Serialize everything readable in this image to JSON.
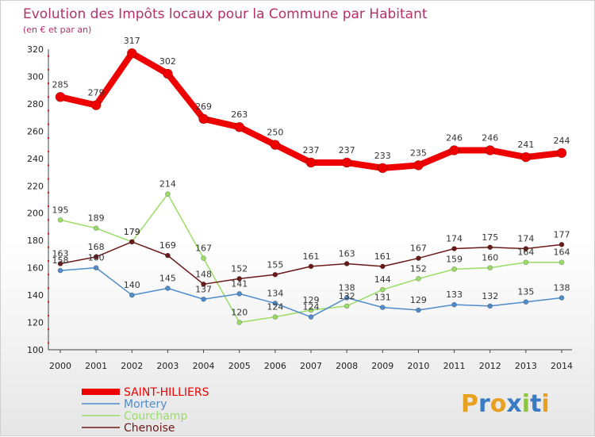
{
  "chart_data": {
    "type": "line",
    "title": "Evolution des Impôts locaux pour la Commune par Habitant",
    "subtitle": "(en € et par an)",
    "xlabel": "",
    "ylabel": "",
    "x": [
      2000,
      2001,
      2002,
      2003,
      2004,
      2005,
      2006,
      2007,
      2008,
      2009,
      2010,
      2011,
      2012,
      2013,
      2014
    ],
    "ylim": [
      100,
      320
    ],
    "yticks": [
      100,
      120,
      140,
      160,
      180,
      200,
      220,
      240,
      260,
      280,
      300,
      320
    ],
    "grid": false,
    "legend_position": "bottom-left",
    "series": [
      {
        "name": "SAINT-HILLIERS",
        "color": "#ee0000",
        "values": [
          285,
          279,
          317,
          302,
          269,
          263,
          250,
          237,
          237,
          233,
          235,
          246,
          246,
          241,
          244
        ]
      },
      {
        "name": "Mortery",
        "color": "#4f8cc9",
        "values": [
          158,
          160,
          140,
          145,
          137,
          141,
          134,
          124,
          138,
          131,
          129,
          133,
          132,
          135,
          138
        ]
      },
      {
        "name": "Courchamp",
        "color": "#99dd66",
        "values": [
          195,
          189,
          179,
          214,
          167,
          120,
          124,
          129,
          132,
          144,
          152,
          159,
          160,
          164,
          164
        ]
      },
      {
        "name": "Chenoise",
        "color": "#6b1a1a",
        "values": [
          163,
          168,
          179,
          169,
          148,
          152,
          155,
          161,
          163,
          161,
          167,
          174,
          175,
          174,
          177
        ]
      }
    ]
  },
  "logo": {
    "text": "Proxiti",
    "letters": [
      "P",
      "r",
      "o",
      "x",
      "i",
      "t",
      "i"
    ],
    "colors": [
      "#e8a020",
      "#3a7cc4",
      "#e8a020",
      "#3a7cc4",
      "#8cc63f",
      "#3a7cc4",
      "#e8a020"
    ]
  }
}
